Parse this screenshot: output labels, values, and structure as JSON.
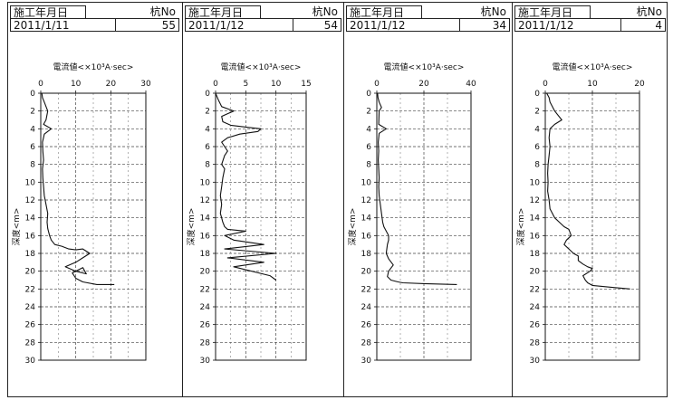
{
  "header_labels": {
    "date": "施工年月日",
    "pile": "杭No"
  },
  "chart_data": [
    {
      "type": "line",
      "date": "2011/1/11",
      "pile_no": "55",
      "xlabel": "電流値<×10³A·sec>",
      "ylabel": "深度<m>",
      "xlim": [
        0,
        30
      ],
      "x_ticks": [
        "0",
        "10",
        "20",
        "30"
      ],
      "ylim": [
        0,
        30
      ],
      "y_ticks": [
        "0",
        "2",
        "4",
        "6",
        "8",
        "10",
        "12",
        "14",
        "16",
        "18",
        "20",
        "22",
        "24",
        "26",
        "28",
        "30"
      ],
      "grid": true,
      "series": [
        {
          "x": [
            0.3,
            0.5,
            1.0,
            2.0,
            1.5,
            0.8,
            3.0,
            1.0,
            0.5,
            0.6,
            0.8,
            0.5,
            0.6,
            0.8,
            1.0,
            1.5,
            2.0,
            1.8,
            2.0,
            2.5,
            3.0,
            4.0,
            6.0,
            8.0,
            10.0,
            12.0,
            14.0,
            12.0,
            10.0,
            7.0,
            10.0,
            13.0,
            12.0,
            9.0,
            10.0,
            12.0,
            16.0,
            21.0
          ],
          "depth": [
            0.0,
            0.5,
            1.0,
            2.0,
            3.0,
            3.5,
            4.0,
            4.6,
            5.5,
            6.5,
            7.5,
            8.5,
            9.5,
            10.5,
            11.5,
            12.5,
            13.5,
            14.5,
            15.2,
            16.0,
            16.5,
            17.0,
            17.2,
            17.5,
            17.6,
            17.5,
            18.0,
            18.5,
            19.0,
            19.5,
            20.0,
            20.3,
            19.6,
            20.2,
            20.8,
            21.2,
            21.5,
            21.5
          ]
        }
      ]
    },
    {
      "type": "line",
      "date": "2011/1/12",
      "pile_no": "54",
      "xlabel": "電流値<×10³A·sec>",
      "ylabel": "深度<m>",
      "xlim": [
        0,
        15
      ],
      "x_ticks": [
        "0",
        "5",
        "10",
        "15"
      ],
      "ylim": [
        0,
        30
      ],
      "y_ticks": [
        "0",
        "2",
        "4",
        "6",
        "8",
        "10",
        "12",
        "14",
        "16",
        "18",
        "20",
        "22",
        "24",
        "26",
        "28",
        "30"
      ],
      "grid": true,
      "series": [
        {
          "x": [
            0.0,
            0.5,
            1.0,
            3.0,
            1.0,
            1.2,
            2.5,
            5.0,
            7.5,
            7.0,
            4.0,
            2.0,
            1.0,
            1.5,
            2.0,
            1.5,
            1.0,
            1.5,
            1.2,
            1.0,
            0.8,
            1.0,
            0.8,
            1.0,
            1.2,
            1.5,
            2.0,
            5.0,
            1.5,
            3.0,
            8.0,
            1.5,
            10.0,
            2.0,
            8.0,
            3.0,
            9.0,
            10.0
          ],
          "depth": [
            0.0,
            0.8,
            1.5,
            2.0,
            2.6,
            3.2,
            3.6,
            3.8,
            4.0,
            4.3,
            4.6,
            5.0,
            5.5,
            6.0,
            6.5,
            7.0,
            8.0,
            8.5,
            9.5,
            10.5,
            11.5,
            12.5,
            13.5,
            14.0,
            14.5,
            15.0,
            15.3,
            15.5,
            16.0,
            16.5,
            17.0,
            17.5,
            18.0,
            18.5,
            19.0,
            19.5,
            20.5,
            21.0
          ]
        }
      ]
    },
    {
      "type": "line",
      "date": "2011/1/12",
      "pile_no": "34",
      "xlabel": "電流値<×10³A·sec>",
      "ylabel": "深度<m>",
      "xlim": [
        0,
        40
      ],
      "x_ticks": [
        "0",
        "20",
        "40"
      ],
      "ylim": [
        0,
        30
      ],
      "y_ticks": [
        "0",
        "2",
        "4",
        "6",
        "8",
        "10",
        "12",
        "14",
        "16",
        "18",
        "20",
        "22",
        "24",
        "26",
        "28",
        "30"
      ],
      "grid": true,
      "series": [
        {
          "x": [
            0.3,
            0.5,
            1.0,
            2.0,
            1.0,
            0.8,
            4.0,
            1.0,
            0.6,
            0.8,
            0.6,
            0.8,
            1.0,
            0.8,
            1.0,
            1.5,
            2.0,
            2.5,
            3.0,
            4.0,
            5.0,
            5.0,
            4.5,
            4.0,
            5.0,
            7.0,
            5.0,
            4.5,
            6.0,
            9.0,
            11.0,
            20.0,
            34.0
          ],
          "depth": [
            0.0,
            0.5,
            1.0,
            1.6,
            2.0,
            3.5,
            4.0,
            4.5,
            5.5,
            6.5,
            7.5,
            8.5,
            9.5,
            10.5,
            11.5,
            12.5,
            13.5,
            14.5,
            15.0,
            15.5,
            16.0,
            16.5,
            17.0,
            18.0,
            18.6,
            19.3,
            20.0,
            20.6,
            21.0,
            21.2,
            21.3,
            21.4,
            21.5
          ]
        }
      ]
    },
    {
      "type": "line",
      "date": "2011/1/12",
      "pile_no": "4",
      "xlabel": "電流値<×10³A·sec>",
      "ylabel": "深度<m>",
      "xlim": [
        0,
        20
      ],
      "x_ticks": [
        "0",
        "10",
        "20"
      ],
      "ylim": [
        0,
        30
      ],
      "y_ticks": [
        "0",
        "2",
        "4",
        "6",
        "8",
        "10",
        "12",
        "14",
        "16",
        "18",
        "20",
        "22",
        "24",
        "26",
        "28",
        "30"
      ],
      "grid": true,
      "series": [
        {
          "x": [
            0.3,
            0.8,
            1.0,
            2.0,
            3.5,
            2.0,
            1.0,
            0.8,
            1.0,
            0.8,
            0.6,
            0.5,
            0.6,
            0.5,
            0.8,
            1.0,
            2.0,
            3.0,
            4.0,
            5.0,
            5.5,
            4.5,
            4.0,
            5.0,
            6.0,
            7.0,
            7.0,
            8.0,
            9.0,
            10.0,
            9.5,
            8.0,
            8.5,
            9.0,
            10.0,
            14.0,
            18.0
          ],
          "depth": [
            0.0,
            0.5,
            1.0,
            2.0,
            3.0,
            3.5,
            4.0,
            5.0,
            6.0,
            7.0,
            8.0,
            9.0,
            10.0,
            11.0,
            12.0,
            13.0,
            14.0,
            14.5,
            15.0,
            15.3,
            16.0,
            16.5,
            17.0,
            17.5,
            18.0,
            18.3,
            18.8,
            19.2,
            19.5,
            19.7,
            20.0,
            20.5,
            21.0,
            21.3,
            21.6,
            21.8,
            22.0
          ]
        }
      ]
    }
  ]
}
